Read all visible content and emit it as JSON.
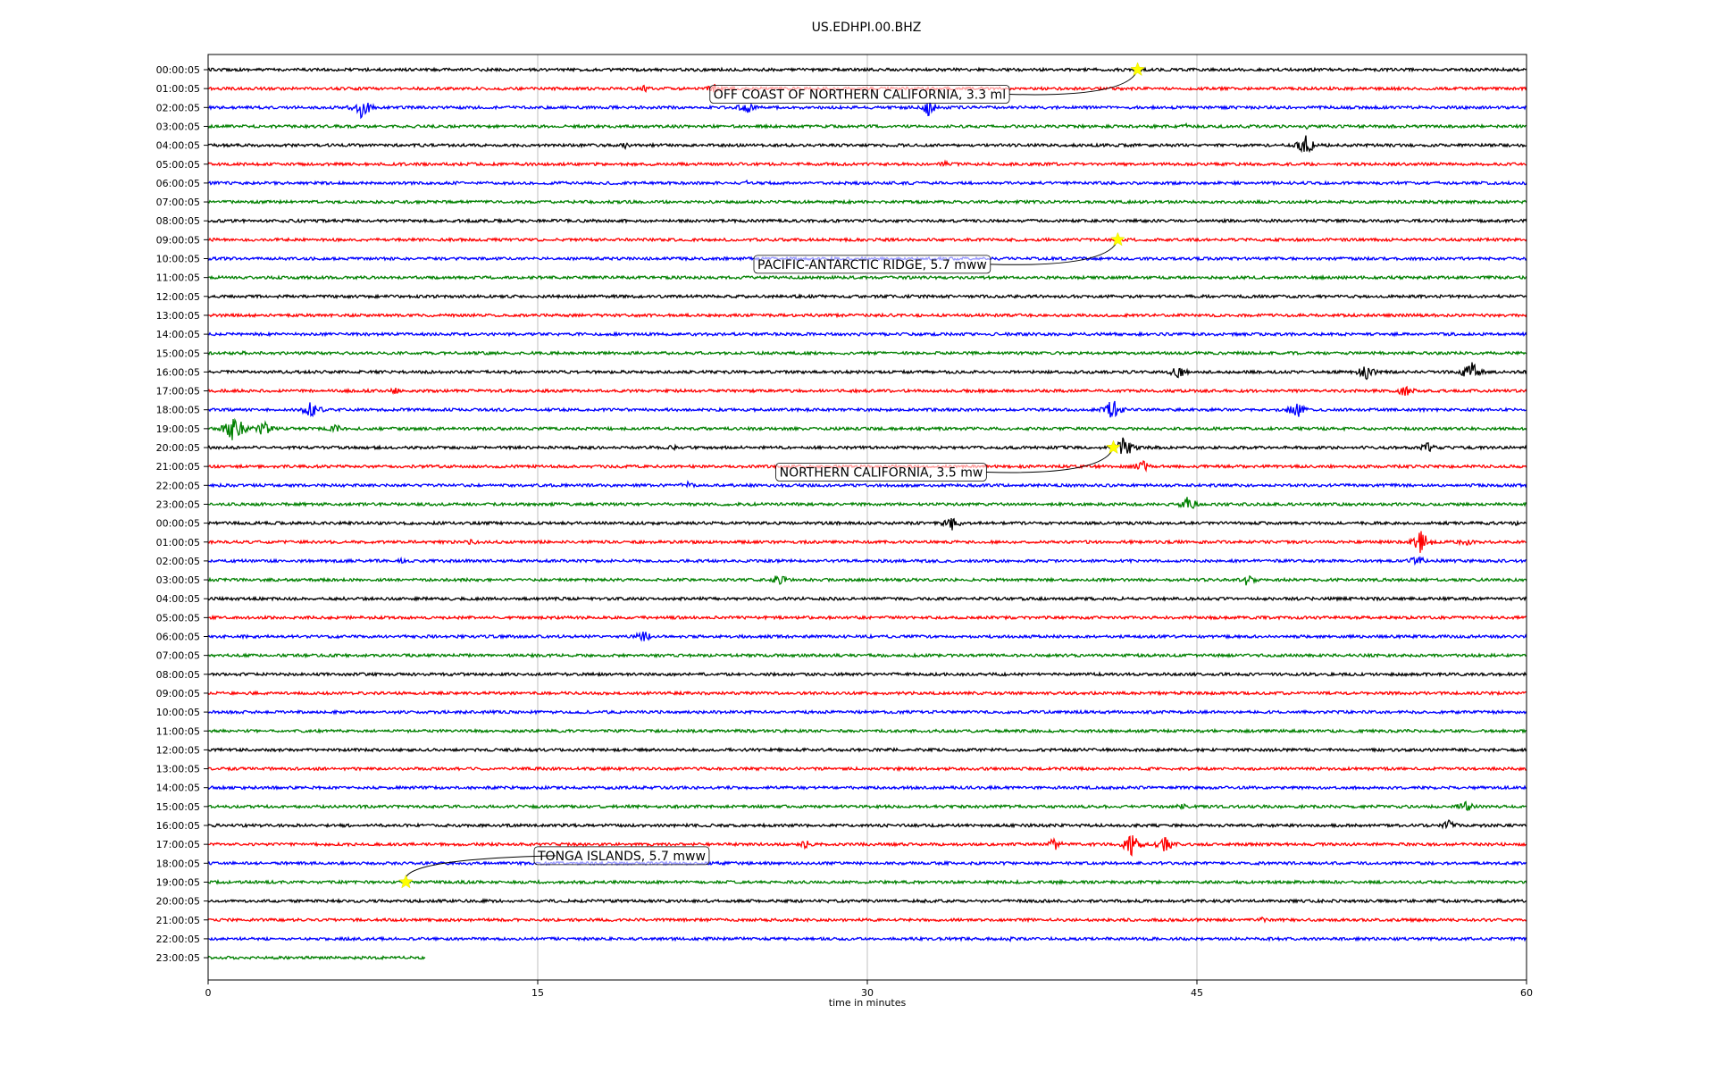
{
  "chart_data": {
    "type": "line",
    "title": "US.EDHPI.00.BHZ",
    "xlabel": "time in minutes",
    "ylabel": "",
    "xlim": [
      0,
      60
    ],
    "x_ticks": [
      0,
      15,
      30,
      45,
      60
    ],
    "grid": "vertical",
    "trace_colors": [
      "#000000",
      "#ff0000",
      "#0000ff",
      "#008000"
    ],
    "rows": [
      {
        "label": "00:00:05",
        "end_minute": 60,
        "bursts": [
          {
            "t": 22.3,
            "a": 3
          },
          {
            "t": 57.5,
            "a": 2
          }
        ]
      },
      {
        "label": "01:00:05",
        "end_minute": 60,
        "bursts": [
          {
            "t": 19.8,
            "a": 5
          },
          {
            "t": 23.0,
            "a": 6
          }
        ]
      },
      {
        "label": "02:00:05",
        "end_minute": 60,
        "bursts": [
          {
            "t": 7.0,
            "a": 14
          },
          {
            "t": 24.5,
            "a": 8
          },
          {
            "t": 32.8,
            "a": 10
          }
        ]
      },
      {
        "label": "03:00:05",
        "end_minute": 60,
        "bursts": [
          {
            "t": 44.5,
            "a": 3
          },
          {
            "t": 50.0,
            "a": 3
          }
        ]
      },
      {
        "label": "04:00:05",
        "end_minute": 60,
        "bursts": [
          {
            "t": 19.0,
            "a": 4
          },
          {
            "t": 50.0,
            "a": 14
          }
        ]
      },
      {
        "label": "05:00:05",
        "end_minute": 60,
        "bursts": [
          {
            "t": 33.5,
            "a": 4
          }
        ]
      },
      {
        "label": "06:00:05",
        "end_minute": 60,
        "bursts": [
          {
            "t": 24.5,
            "a": 3
          }
        ]
      },
      {
        "label": "07:00:05",
        "end_minute": 60,
        "bursts": []
      },
      {
        "label": "08:00:05",
        "end_minute": 60,
        "bursts": []
      },
      {
        "label": "09:00:05",
        "end_minute": 60,
        "bursts": []
      },
      {
        "label": "10:00:05",
        "end_minute": 60,
        "bursts": []
      },
      {
        "label": "11:00:05",
        "end_minute": 60,
        "bursts": []
      },
      {
        "label": "12:00:05",
        "end_minute": 60,
        "bursts": []
      },
      {
        "label": "13:00:05",
        "end_minute": 60,
        "bursts": []
      },
      {
        "label": "14:00:05",
        "end_minute": 60,
        "bursts": []
      },
      {
        "label": "15:00:05",
        "end_minute": 60,
        "bursts": [
          {
            "t": 1.5,
            "a": 3
          },
          {
            "t": 5.0,
            "a": 3
          }
        ]
      },
      {
        "label": "16:00:05",
        "end_minute": 60,
        "bursts": [
          {
            "t": 44.2,
            "a": 10
          },
          {
            "t": 52.7,
            "a": 10
          },
          {
            "t": 57.5,
            "a": 14
          }
        ]
      },
      {
        "label": "17:00:05",
        "end_minute": 60,
        "bursts": [
          {
            "t": 8.5,
            "a": 4
          },
          {
            "t": 54.5,
            "a": 8
          }
        ]
      },
      {
        "label": "18:00:05",
        "end_minute": 60,
        "bursts": [
          {
            "t": 4.7,
            "a": 12
          },
          {
            "t": 41.2,
            "a": 16
          },
          {
            "t": 49.5,
            "a": 12
          }
        ]
      },
      {
        "label": "19:00:05",
        "end_minute": 60,
        "bursts": [
          {
            "t": 1.2,
            "a": 20
          },
          {
            "t": 2.5,
            "a": 10
          },
          {
            "t": 5.8,
            "a": 6
          }
        ]
      },
      {
        "label": "20:00:05",
        "end_minute": 60,
        "bursts": [
          {
            "t": 21.2,
            "a": 4
          },
          {
            "t": 41.7,
            "a": 14
          },
          {
            "t": 55.5,
            "a": 6
          }
        ]
      },
      {
        "label": "21:00:05",
        "end_minute": 60,
        "bursts": [
          {
            "t": 42.5,
            "a": 8
          }
        ]
      },
      {
        "label": "22:00:05",
        "end_minute": 60,
        "bursts": [
          {
            "t": 21.8,
            "a": 5
          }
        ]
      },
      {
        "label": "23:00:05",
        "end_minute": 60,
        "bursts": [
          {
            "t": 44.6,
            "a": 10
          }
        ]
      },
      {
        "label": "00:00:05",
        "end_minute": 60,
        "bursts": [
          {
            "t": 33.8,
            "a": 10
          },
          {
            "t": 59.5,
            "a": 3
          }
        ]
      },
      {
        "label": "01:00:05",
        "end_minute": 60,
        "bursts": [
          {
            "t": 12.0,
            "a": 4
          },
          {
            "t": 55.2,
            "a": 14
          },
          {
            "t": 57.2,
            "a": 6
          }
        ]
      },
      {
        "label": "02:00:05",
        "end_minute": 60,
        "bursts": [
          {
            "t": 8.8,
            "a": 3
          },
          {
            "t": 55.0,
            "a": 8
          }
        ]
      },
      {
        "label": "03:00:05",
        "end_minute": 60,
        "bursts": [
          {
            "t": 26.0,
            "a": 8
          },
          {
            "t": 47.3,
            "a": 8
          }
        ]
      },
      {
        "label": "04:00:05",
        "end_minute": 60,
        "bursts": []
      },
      {
        "label": "05:00:05",
        "end_minute": 60,
        "bursts": []
      },
      {
        "label": "06:00:05",
        "end_minute": 60,
        "bursts": [
          {
            "t": 19.8,
            "a": 8
          }
        ]
      },
      {
        "label": "07:00:05",
        "end_minute": 60,
        "bursts": []
      },
      {
        "label": "08:00:05",
        "end_minute": 60,
        "bursts": []
      },
      {
        "label": "09:00:05",
        "end_minute": 60,
        "bursts": []
      },
      {
        "label": "10:00:05",
        "end_minute": 60,
        "bursts": []
      },
      {
        "label": "11:00:05",
        "end_minute": 60,
        "bursts": []
      },
      {
        "label": "12:00:05",
        "end_minute": 60,
        "bursts": []
      },
      {
        "label": "13:00:05",
        "end_minute": 60,
        "bursts": []
      },
      {
        "label": "14:00:05",
        "end_minute": 60,
        "bursts": []
      },
      {
        "label": "15:00:05",
        "end_minute": 60,
        "bursts": [
          {
            "t": 44.3,
            "a": 4
          },
          {
            "t": 57.2,
            "a": 8
          }
        ]
      },
      {
        "label": "16:00:05",
        "end_minute": 60,
        "bursts": [
          {
            "t": 56.5,
            "a": 7
          }
        ]
      },
      {
        "label": "17:00:05",
        "end_minute": 60,
        "bursts": [
          {
            "t": 27.2,
            "a": 5
          },
          {
            "t": 38.5,
            "a": 8
          },
          {
            "t": 42.0,
            "a": 14
          },
          {
            "t": 43.5,
            "a": 12
          }
        ]
      },
      {
        "label": "18:00:05",
        "end_minute": 60,
        "bursts": []
      },
      {
        "label": "19:00:05",
        "end_minute": 60,
        "bursts": [
          {
            "t": 38.5,
            "a": 3
          }
        ]
      },
      {
        "label": "20:00:05",
        "end_minute": 60,
        "bursts": []
      },
      {
        "label": "21:00:05",
        "end_minute": 60,
        "bursts": [
          {
            "t": 48.0,
            "a": 4
          }
        ]
      },
      {
        "label": "22:00:05",
        "end_minute": 60,
        "bursts": [
          {
            "t": 36.5,
            "a": 3
          }
        ]
      },
      {
        "label": "23:00:05",
        "end_minute": 9.9,
        "bursts": []
      }
    ],
    "events": [
      {
        "label": "OFF COAST OF NORTHERN CALIFORNIA, 3.3 ml",
        "row": 0,
        "minute": 42.3,
        "text_minute": 23.0,
        "text_row": 1.3
      },
      {
        "label": "PACIFIC-ANTARCTIC RIDGE, 5.7 mww",
        "row": 9,
        "minute": 41.4,
        "text_minute": 25.0,
        "text_row": 10.3
      },
      {
        "label": "NORTHERN CALIFORNIA, 3.5 mw",
        "row": 20,
        "minute": 41.2,
        "text_minute": 26.0,
        "text_row": 21.3
      },
      {
        "label": "TONGA ISLANDS, 5.7 mww",
        "row": 43,
        "minute": 9.0,
        "text_minute": 15.0,
        "text_row": 41.6
      }
    ]
  }
}
